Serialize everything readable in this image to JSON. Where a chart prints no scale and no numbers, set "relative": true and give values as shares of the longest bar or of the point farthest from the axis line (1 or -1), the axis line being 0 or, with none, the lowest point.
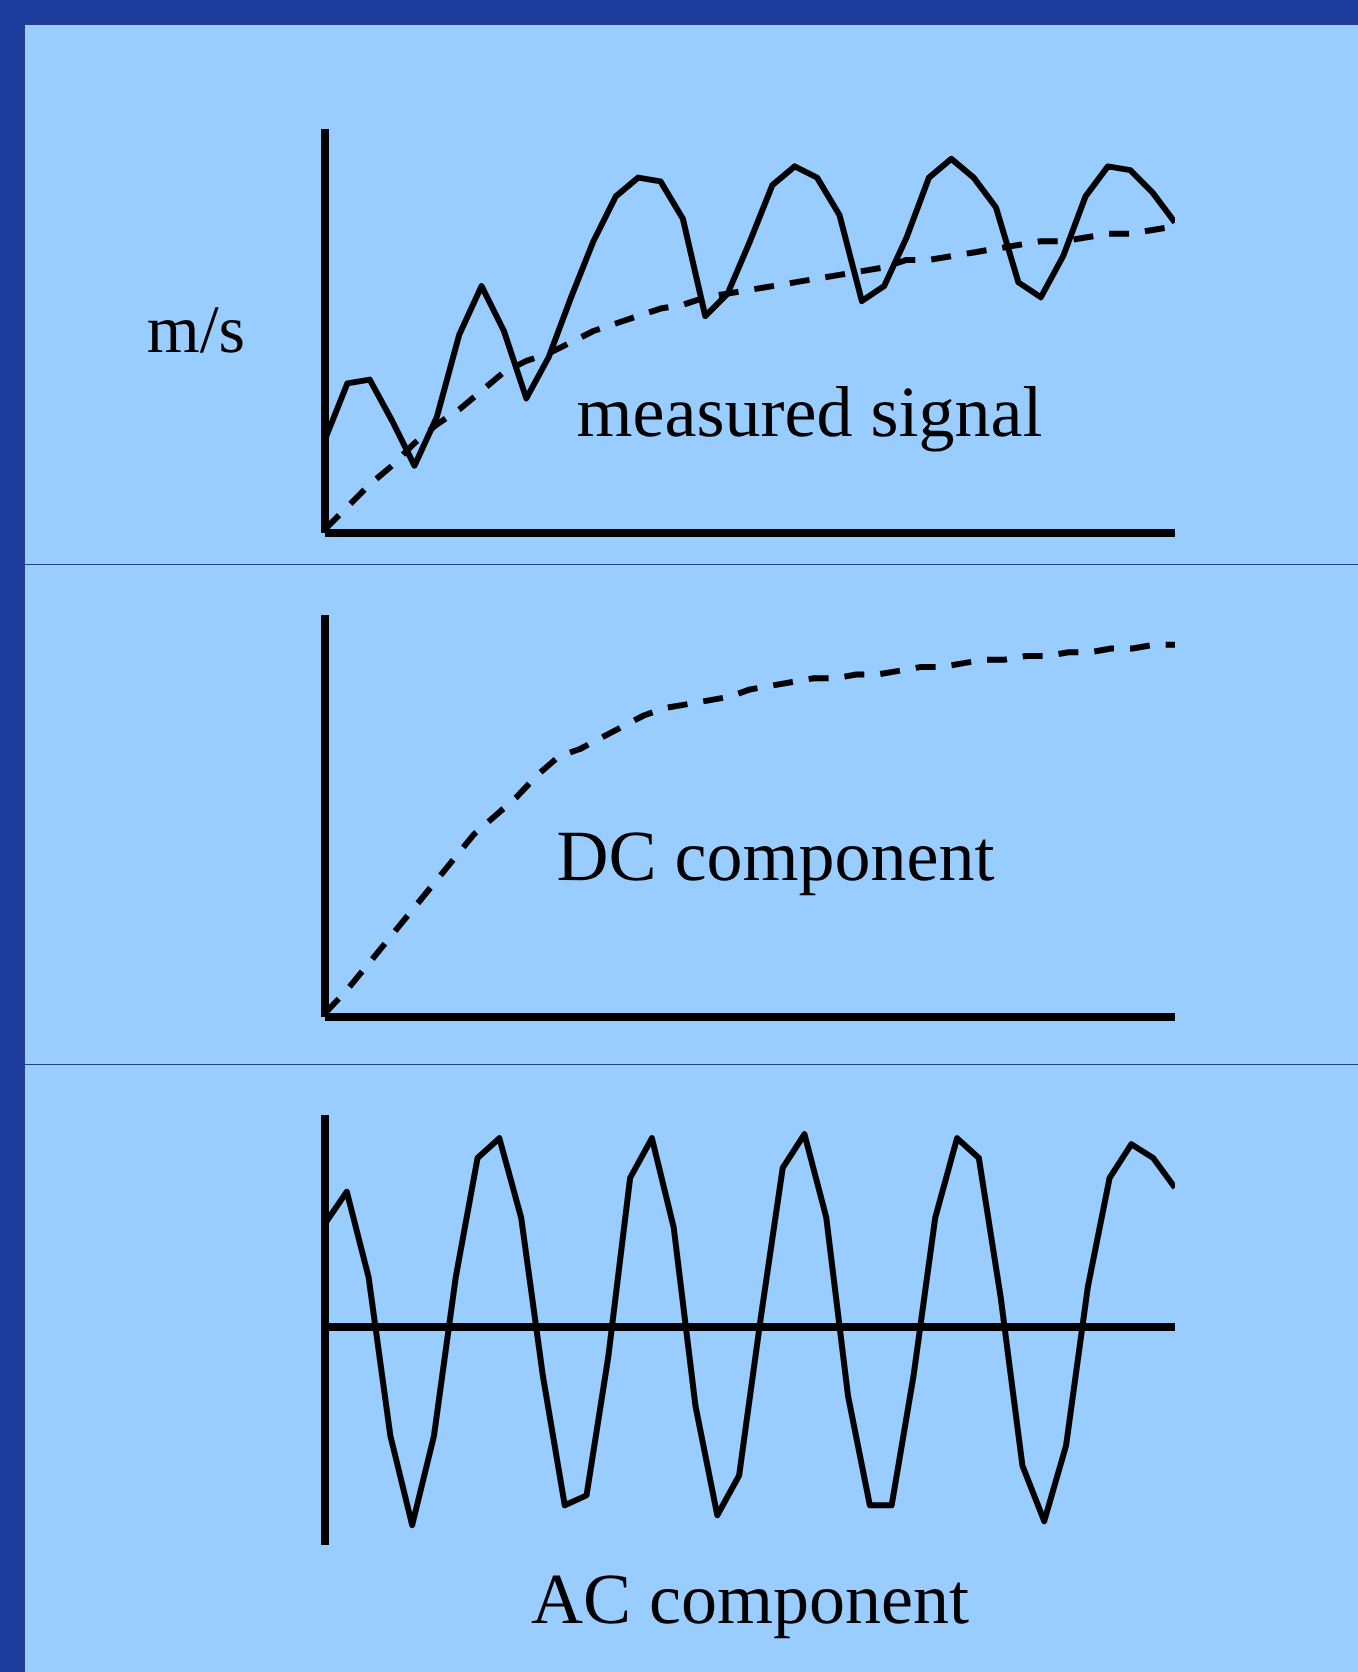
{
  "chart_data": [
    {
      "type": "line",
      "relative": true,
      "ylabel": "m/s",
      "annotations": [
        "measured signal"
      ],
      "categories": [
        null,
        null,
        null,
        null,
        null,
        null,
        null,
        null,
        null,
        null,
        null,
        null,
        null,
        null,
        null,
        null,
        null,
        null,
        null,
        null,
        null,
        null,
        null,
        null,
        null,
        null,
        null,
        null,
        null,
        null,
        null,
        null,
        null,
        null,
        null,
        null,
        null,
        null,
        null
      ],
      "series": [
        {
          "color": "#000000",
          "line_style": "solid",
          "values": [
            0.25,
            0.4,
            0.41,
            0.3,
            0.18,
            0.31,
            0.53,
            0.66,
            0.54,
            0.36,
            0.47,
            0.63,
            0.78,
            0.9,
            0.95,
            0.94,
            0.84,
            0.58,
            0.64,
            0.78,
            0.93,
            0.98,
            0.95,
            0.85,
            0.62,
            0.66,
            0.79,
            0.95,
            1.0,
            0.95,
            0.87,
            0.67,
            0.63,
            0.74,
            0.9,
            0.98,
            0.97,
            0.91,
            0.83
          ]
        },
        {
          "color": "#000000",
          "line_style": "dashed",
          "values": [
            0.01,
            0.07,
            0.13,
            0.18,
            0.24,
            0.29,
            0.33,
            0.38,
            0.43,
            0.46,
            0.48,
            0.51,
            0.54,
            0.56,
            0.58,
            0.6,
            0.61,
            0.63,
            0.64,
            0.65,
            0.66,
            0.67,
            0.68,
            0.69,
            0.7,
            0.71,
            0.73,
            0.73,
            0.74,
            0.75,
            0.76,
            0.77,
            0.78,
            0.78,
            0.79,
            0.8,
            0.8,
            0.81,
            0.82
          ]
        }
      ]
    },
    {
      "type": "line",
      "relative": true,
      "annotations": [
        "DC component"
      ],
      "categories": [
        null,
        null,
        null,
        null,
        null,
        null,
        null,
        null,
        null,
        null,
        null,
        null,
        null,
        null,
        null,
        null,
        null,
        null,
        null,
        null,
        null,
        null,
        null,
        null,
        null,
        null,
        null,
        null,
        null,
        null,
        null,
        null,
        null,
        null,
        null,
        null,
        null,
        null,
        null,
        null,
        null
      ],
      "series": [
        {
          "color": "#000000",
          "line_style": "dashed",
          "values": [
            0.01,
            0.07,
            0.14,
            0.21,
            0.28,
            0.35,
            0.42,
            0.49,
            0.54,
            0.59,
            0.65,
            0.7,
            0.72,
            0.75,
            0.78,
            0.81,
            0.83,
            0.84,
            0.85,
            0.86,
            0.88,
            0.89,
            0.9,
            0.91,
            0.91,
            0.92,
            0.92,
            0.93,
            0.94,
            0.94,
            0.95,
            0.96,
            0.96,
            0.97,
            0.97,
            0.98,
            0.98,
            0.99,
            0.99,
            1.0,
            1.0
          ]
        }
      ]
    },
    {
      "type": "line",
      "relative": true,
      "annotations": [
        "AC component"
      ],
      "categories": [
        null,
        null,
        null,
        null,
        null,
        null,
        null,
        null,
        null,
        null,
        null,
        null,
        null,
        null,
        null,
        null,
        null,
        null,
        null,
        null,
        null,
        null,
        null,
        null,
        null,
        null,
        null,
        null,
        null,
        null,
        null,
        null,
        null,
        null,
        null,
        null,
        null,
        null,
        null,
        null
      ],
      "series": [
        {
          "color": "#000000",
          "line_style": "solid",
          "values": [
            0.52,
            0.68,
            0.25,
            -0.55,
            -1.0,
            -0.55,
            0.25,
            0.85,
            0.95,
            0.55,
            -0.25,
            -0.9,
            -0.85,
            -0.15,
            0.75,
            0.95,
            0.5,
            -0.4,
            -0.95,
            -0.75,
            0.05,
            0.8,
            0.97,
            0.55,
            -0.35,
            -0.9,
            -0.9,
            -0.25,
            0.55,
            0.95,
            0.85,
            0.15,
            -0.7,
            -0.98,
            -0.6,
            0.2,
            0.75,
            0.92,
            0.85,
            0.7
          ]
        }
      ]
    }
  ]
}
